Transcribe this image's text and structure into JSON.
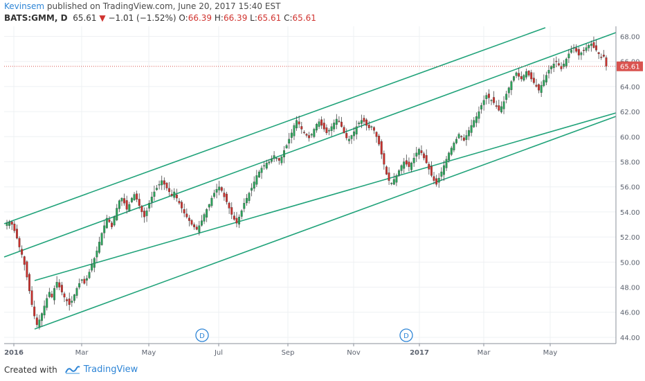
{
  "header": {
    "author": "Kevinsem",
    "published": "published on TradingView.com, June 20, 2017 15:40 EST"
  },
  "symbol_line": {
    "symbol": "BATS:GMM, D",
    "last": "65.61",
    "change_arrow": "▼",
    "change": "−1.01 (−1.52%)",
    "o_label": "O:",
    "o_val": "66.39",
    "h_label": "H:",
    "h_val": "66.39",
    "l_label": "L:",
    "l_val": "65.61",
    "c_label": "C:",
    "c_val": "65.61"
  },
  "footer": {
    "created_with": "Created with",
    "brand": "TradingView"
  },
  "colors": {
    "up": "#2aa35a",
    "down": "#c9302c",
    "channel": "#21a37a",
    "grid": "#eef0f3",
    "price_tag": "#d9534f"
  },
  "chart_data": {
    "type": "candlestick",
    "ylim": [
      43.5,
      68.8
    ],
    "yticks": [
      "44.00",
      "46.00",
      "48.00",
      "50.00",
      "52.00",
      "54.00",
      "56.00",
      "58.00",
      "60.00",
      "62.00",
      "64.00",
      "66.00",
      "68.00"
    ],
    "xticks": [
      "2016",
      "Mar",
      "May",
      "Jul",
      "Sep",
      "Nov",
      "2017",
      "Mar",
      "May"
    ],
    "last_price": "65.61",
    "dividend_markers": [
      "D",
      "D"
    ],
    "series": [
      53.1,
      53.2,
      53.0,
      52.5,
      51.9,
      51.2,
      50.6,
      49.8,
      48.8,
      47.7,
      46.6,
      45.7,
      45.0,
      45.4,
      45.9,
      46.5,
      47.1,
      47.6,
      47.2,
      47.9,
      48.4,
      48.0,
      47.6,
      47.2,
      46.9,
      46.6,
      46.9,
      47.4,
      47.9,
      48.3,
      48.6,
      48.3,
      48.7,
      49.2,
      49.8,
      50.3,
      50.9,
      51.6,
      52.3,
      52.9,
      53.5,
      53.2,
      52.8,
      53.6,
      54.3,
      54.9,
      55.1,
      54.7,
      54.2,
      54.6,
      55.1,
      55.4,
      55.0,
      54.5,
      54.0,
      53.6,
      54.1,
      54.7,
      55.2,
      55.6,
      55.9,
      56.2,
      56.5,
      56.2,
      55.9,
      55.6,
      55.3,
      55.6,
      55.1,
      54.7,
      54.3,
      53.9,
      53.6,
      53.3,
      53.0,
      52.8,
      52.6,
      52.9,
      53.3,
      53.8,
      54.2,
      54.6,
      55.1,
      55.5,
      55.8,
      56.0,
      55.7,
      55.2,
      54.8,
      54.3,
      53.8,
      53.4,
      53.1,
      53.6,
      54.1,
      54.7,
      55.1,
      55.5,
      55.9,
      56.4,
      56.9,
      57.2,
      57.5,
      57.7,
      57.9,
      58.0,
      58.2,
      58.5,
      58.3,
      58.1,
      58.4,
      58.9,
      59.3,
      59.8,
      60.3,
      60.9,
      61.3,
      61.0,
      60.6,
      60.3,
      60.1,
      59.9,
      60.2,
      60.6,
      61.0,
      61.2,
      60.9,
      60.6,
      60.3,
      60.5,
      60.8,
      61.1,
      61.4,
      61.2,
      60.8,
      60.3,
      59.9,
      59.8,
      60.1,
      60.4,
      60.8,
      61.1,
      61.3,
      61.2,
      60.9,
      60.7,
      60.8,
      60.5,
      60.0,
      59.4,
      58.6,
      57.8,
      57.0,
      56.5,
      56.3,
      56.6,
      56.9,
      57.3,
      57.7,
      58.0,
      57.8,
      57.6,
      57.9,
      58.3,
      58.7,
      59.0,
      58.7,
      58.3,
      57.9,
      57.4,
      56.9,
      56.5,
      56.2,
      56.7,
      57.2,
      57.7,
      58.2,
      58.7,
      59.1,
      59.5,
      59.8,
      60.2,
      60.0,
      59.7,
      60.1,
      60.5,
      60.9,
      61.3,
      61.6,
      62.0,
      62.5,
      62.9,
      63.3,
      63.1,
      62.9,
      62.7,
      62.4,
      62.1,
      62.4,
      62.8,
      63.4,
      63.9,
      64.4,
      64.8,
      65.1,
      64.8,
      64.6,
      64.9,
      65.2,
      64.9,
      64.6,
      64.3,
      64.0,
      63.7,
      64.1,
      64.5,
      64.9,
      65.3,
      65.6,
      65.8,
      66.0,
      65.7,
      65.4,
      65.8,
      66.2,
      66.6,
      66.9,
      67.1,
      66.8,
      66.5,
      66.7,
      66.9,
      67.1,
      67.3,
      67.4,
      67.1,
      66.9,
      66.6,
      66.3,
      66.4,
      65.61
    ]
  }
}
